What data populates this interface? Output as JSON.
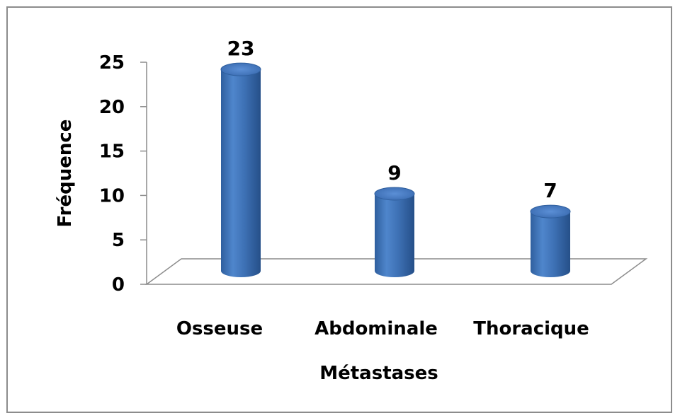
{
  "chart_data": {
    "type": "bar",
    "categories": [
      "Osseuse",
      "Abdominale",
      "Thoracique"
    ],
    "values": [
      23,
      9,
      7
    ],
    "data_labels": [
      "23",
      "9",
      "7"
    ],
    "xlabel": "Métastases",
    "ylabel": "Fréquence",
    "ylim": [
      0,
      25
    ],
    "yticks": [
      0,
      5,
      10,
      15,
      20,
      25
    ],
    "grid": false,
    "style": "3d-cylinder",
    "bar_color": "#4a7ebb"
  }
}
